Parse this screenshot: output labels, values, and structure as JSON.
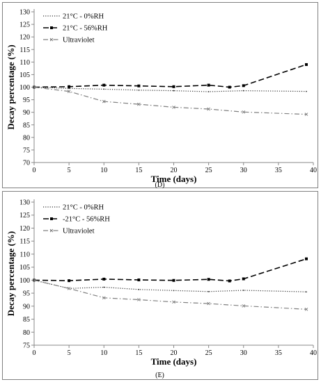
{
  "chart_data": [
    {
      "type": "line",
      "caption": "(D)",
      "xlabel": "Time (days)",
      "ylabel": "Decay percentage (%)",
      "xlim": [
        0,
        40
      ],
      "ylim": [
        70,
        130
      ],
      "xticks": [
        0,
        5,
        10,
        15,
        20,
        25,
        30,
        35,
        40
      ],
      "yticks": [
        70,
        75,
        80,
        85,
        90,
        95,
        100,
        105,
        110,
        115,
        120,
        125,
        130
      ],
      "legend_position": "top-left",
      "grid": false,
      "series": [
        {
          "name": "21°C - 0%RH",
          "style": "dotted",
          "marker": "none",
          "color": "#333333",
          "x": [
            0,
            5,
            10,
            15,
            20,
            25,
            30,
            39
          ],
          "y": [
            100,
            99.5,
            99.2,
            98.8,
            98.6,
            98.2,
            98.6,
            98.3
          ]
        },
        {
          "name": "21°C - 56%RH",
          "style": "dashed",
          "marker": "square",
          "color": "#000000",
          "x": [
            0,
            5,
            10,
            15,
            20,
            25,
            28,
            30,
            39
          ],
          "y": [
            100,
            100.2,
            100.8,
            100.5,
            100.2,
            100.8,
            100,
            100.6,
            109
          ]
        },
        {
          "name": "Ultraviolet",
          "style": "dashdot",
          "marker": "x",
          "color": "#7f7f7f",
          "x": [
            0,
            5,
            10,
            15,
            20,
            25,
            30,
            39
          ],
          "y": [
            100,
            98.3,
            94.3,
            93.2,
            92,
            91.3,
            90.1,
            89.2
          ]
        }
      ]
    },
    {
      "type": "line",
      "caption": "(E)",
      "xlabel": "Time (days)",
      "ylabel": "Decay percentage (%)",
      "xlim": [
        0,
        40
      ],
      "ylim": [
        75,
        130
      ],
      "xticks": [
        0,
        5,
        10,
        15,
        20,
        25,
        30,
        35,
        40
      ],
      "yticks": [
        75,
        80,
        85,
        90,
        95,
        100,
        105,
        110,
        115,
        120,
        125,
        130
      ],
      "legend_position": "top-left",
      "grid": false,
      "series": [
        {
          "name": "21°C - 0%RH",
          "style": "dotted",
          "marker": "none",
          "color": "#333333",
          "x": [
            0,
            5,
            10,
            15,
            20,
            25,
            30,
            39
          ],
          "y": [
            100,
            96.8,
            97.3,
            96.4,
            96,
            95.6,
            96.1,
            95.5
          ]
        },
        {
          "name": "-21°C - 56%RH",
          "style": "dashed",
          "marker": "square",
          "color": "#000000",
          "x": [
            0,
            5,
            10,
            15,
            20,
            25,
            28,
            30,
            39
          ],
          "y": [
            100,
            99.8,
            100.4,
            100.1,
            99.9,
            100.3,
            99.7,
            100.5,
            108.2
          ]
        },
        {
          "name": "Ultraviolet",
          "style": "dashdot",
          "marker": "x",
          "color": "#7f7f7f",
          "x": [
            0,
            5,
            10,
            15,
            20,
            25,
            30,
            39
          ],
          "y": [
            100,
            96.8,
            93.2,
            92.5,
            91.6,
            91,
            90.1,
            88.8
          ]
        }
      ]
    }
  ]
}
